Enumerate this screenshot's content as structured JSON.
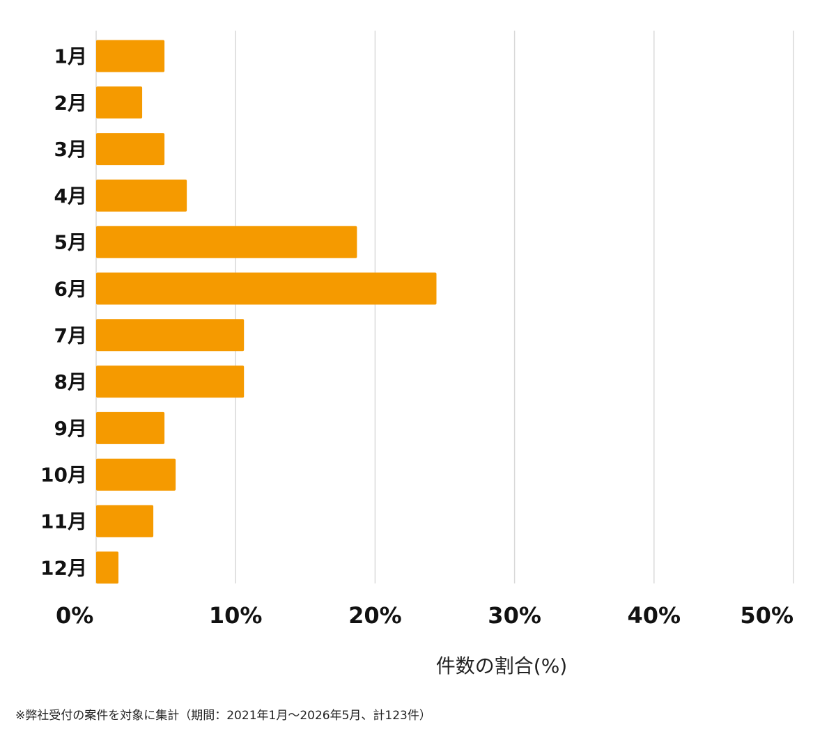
{
  "chart_data": {
    "type": "bar",
    "orientation": "horizontal",
    "categories": [
      "1月",
      "2月",
      "3月",
      "4月",
      "5月",
      "6月",
      "7月",
      "8月",
      "9月",
      "10月",
      "11月",
      "12月"
    ],
    "values": [
      4.9,
      3.3,
      4.9,
      6.5,
      18.7,
      24.4,
      10.6,
      10.6,
      4.9,
      5.7,
      4.1,
      1.6
    ],
    "xlabel": "件数の割合(%)",
    "ylabel": "",
    "xlim": [
      0,
      50
    ],
    "xticks": [
      0,
      10,
      20,
      30,
      40,
      50
    ],
    "xtick_labels": [
      "0%",
      "10%",
      "20%",
      "30%",
      "40%",
      "50%"
    ],
    "grid": "vertical",
    "bar_color": "#f59a00",
    "grid_color": "#d9d9d9"
  },
  "footnote": "※弊社受付の案件を対象に集計（期間：2021年1月〜2026年5月、計123件）"
}
